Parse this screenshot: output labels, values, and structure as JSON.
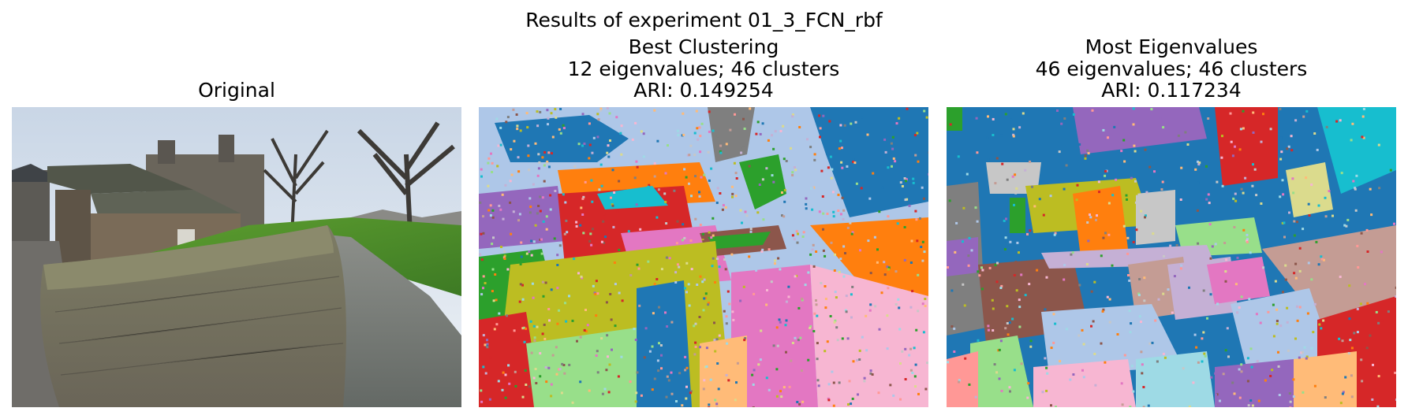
{
  "figure": {
    "suptitle": "Results of experiment 01_3_FCN_rbf"
  },
  "panels": [
    {
      "title_lines": [
        "Original"
      ],
      "image": "photo of a stone building with curved mossy stone wall, grass lawn, paved path and bare trees"
    },
    {
      "title_lines": [
        "Best Clustering",
        "12 eigenvalues; 46 clusters",
        "ARI: 0.149254"
      ]
    },
    {
      "title_lines": [
        "Most Eigenvalues",
        "46 eigenvalues; 46 clusters",
        "ARI: 0.117234"
      ]
    }
  ],
  "colors": {
    "tab20": [
      "#1f77b4",
      "#aec7e8",
      "#ff7f0e",
      "#ffbb78",
      "#2ca02c",
      "#98df8a",
      "#d62728",
      "#ff9896",
      "#9467bd",
      "#c5b0d5",
      "#8c564b",
      "#c49c94",
      "#e377c2",
      "#f7b6d2",
      "#7f7f7f",
      "#c7c7c7",
      "#bcbd22",
      "#dbdb8d",
      "#17becf",
      "#9edae5"
    ]
  }
}
